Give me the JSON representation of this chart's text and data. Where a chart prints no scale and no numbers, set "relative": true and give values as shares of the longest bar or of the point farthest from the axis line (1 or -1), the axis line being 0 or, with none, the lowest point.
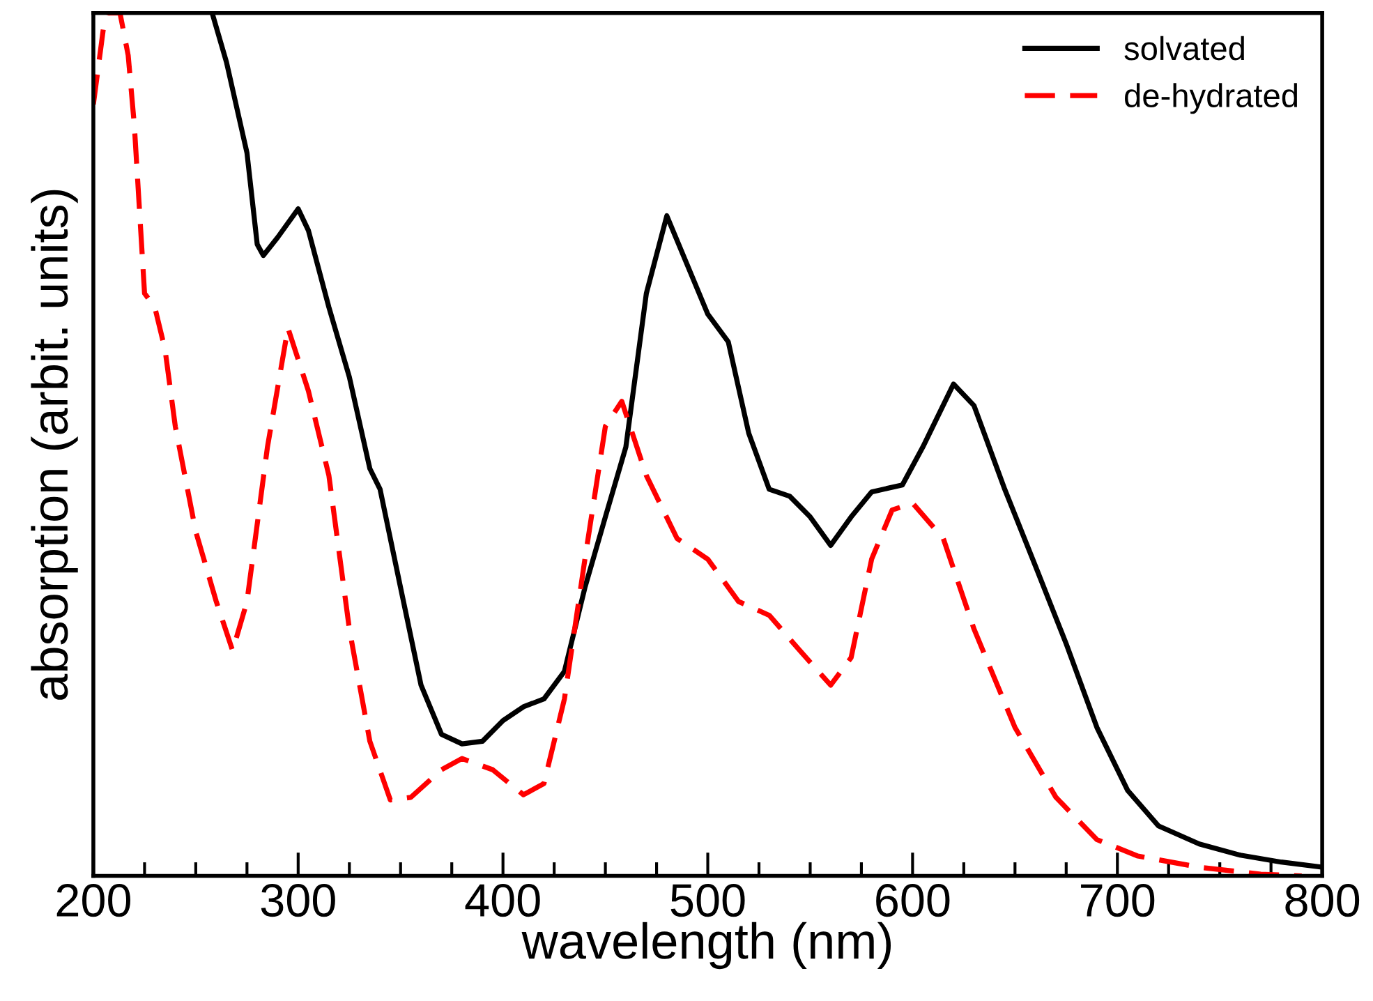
{
  "chart_data": {
    "type": "line",
    "relative": true,
    "xlabel": "wavelength (nm)",
    "ylabel": "absorption (arbit. units)",
    "xlim": [
      200,
      800
    ],
    "xticks": [
      200,
      {
        "value": 225,
        "label": null
      },
      {
        "value": 250,
        "label": null
      },
      {
        "value": 275,
        "label": null
      },
      300,
      {
        "value": 325,
        "label": null
      },
      {
        "value": 350,
        "label": null
      },
      {
        "value": 375,
        "label": null
      },
      400,
      {
        "value": 425,
        "label": null
      },
      {
        "value": 450,
        "label": null
      },
      {
        "value": 475,
        "label": null
      },
      500,
      {
        "value": 525,
        "label": null
      },
      {
        "value": 550,
        "label": null
      },
      {
        "value": 575,
        "label": null
      },
      600,
      {
        "value": 625,
        "label": null
      },
      {
        "value": 650,
        "label": null
      },
      {
        "value": 675,
        "label": null
      },
      700,
      {
        "value": 725,
        "label": null
      },
      {
        "value": 750,
        "label": null
      },
      {
        "value": 775,
        "label": null
      },
      800
    ],
    "grid": false,
    "legend": "top right",
    "tick_labels": "x",
    "marker": "none",
    "series": [
      {
        "name": "solvated",
        "color": "#000000",
        "line_style": "solid",
        "x": [
          258,
          265,
          275,
          280,
          283,
          290,
          300,
          305,
          315,
          325,
          335,
          340,
          350,
          360,
          370,
          380,
          390,
          400,
          410,
          420,
          430,
          440,
          450,
          460,
          470,
          480,
          490,
          500,
          510,
          520,
          530,
          540,
          550,
          560,
          570,
          580,
          595,
          605,
          620,
          630,
          645,
          660,
          675,
          690,
          705,
          720,
          740,
          760,
          780,
          800
        ],
        "values": [
          1.0,
          0.943,
          0.838,
          0.732,
          0.719,
          0.74,
          0.773,
          0.748,
          0.659,
          0.578,
          0.472,
          0.448,
          0.334,
          0.221,
          0.164,
          0.153,
          0.156,
          0.18,
          0.196,
          0.205,
          0.237,
          0.334,
          0.416,
          0.497,
          0.675,
          0.765,
          0.708,
          0.651,
          0.619,
          0.513,
          0.448,
          0.44,
          0.416,
          0.383,
          0.416,
          0.445,
          0.453,
          0.497,
          0.57,
          0.545,
          0.448,
          0.359,
          0.269,
          0.172,
          0.099,
          0.058,
          0.037,
          0.024,
          0.016,
          0.01
        ]
      },
      {
        "name": "de-hydrated",
        "color": "#ff0000",
        "line_style": "dashed",
        "x": [
          200,
          205,
          207,
          213,
          217,
          220,
          225,
          230,
          235,
          240,
          250,
          260,
          268,
          275,
          285,
          295,
          305,
          315,
          325,
          335,
          345,
          355,
          370,
          380,
          395,
          410,
          420,
          430,
          440,
          450,
          458,
          470,
          485,
          500,
          515,
          530,
          545,
          560,
          570,
          580,
          590,
          600,
          615,
          630,
          650,
          670,
          690,
          710,
          740,
          770,
          790
        ],
        "values": [
          0.894,
          0.984,
          1.0,
          1.0,
          0.951,
          0.87,
          0.675,
          0.659,
          0.61,
          0.521,
          0.399,
          0.318,
          0.261,
          0.318,
          0.497,
          0.635,
          0.562,
          0.464,
          0.286,
          0.156,
          0.088,
          0.091,
          0.123,
          0.136,
          0.123,
          0.094,
          0.107,
          0.205,
          0.367,
          0.521,
          0.55,
          0.464,
          0.391,
          0.367,
          0.318,
          0.302,
          0.261,
          0.221,
          0.253,
          0.367,
          0.424,
          0.432,
          0.391,
          0.286,
          0.172,
          0.091,
          0.042,
          0.023,
          0.01,
          0.002,
          0.0
        ]
      }
    ]
  }
}
